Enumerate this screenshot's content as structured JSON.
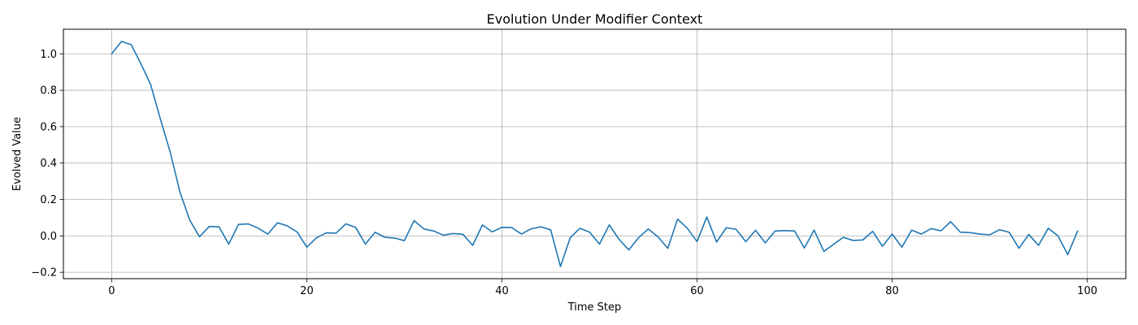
{
  "chart_data": {
    "type": "line",
    "title": "Evolution Under Modifier Context",
    "xlabel": "Time Step",
    "ylabel": "Evolved Value",
    "xlim": [
      -4.95,
      103.95
    ],
    "ylim": [
      -0.235,
      1.135
    ],
    "xticks": [
      0,
      20,
      40,
      60,
      80,
      100
    ],
    "yticks": [
      -0.2,
      0.0,
      0.2,
      0.4,
      0.6,
      0.8,
      1.0
    ],
    "xtick_labels": [
      "0",
      "20",
      "40",
      "60",
      "80",
      "100"
    ],
    "ytick_labels": [
      "−0.2",
      "0.0",
      "0.2",
      "0.4",
      "0.6",
      "0.8",
      "1.0"
    ],
    "grid": true,
    "line_color": "#1f77b4",
    "series": [
      {
        "x": [
          0,
          1,
          2,
          3,
          4,
          5,
          6,
          7,
          8,
          9,
          10,
          11,
          12,
          13,
          14,
          15,
          16,
          17,
          18,
          19,
          20,
          21,
          22,
          23,
          24,
          25,
          26,
          27,
          28,
          29,
          30,
          31,
          32,
          33,
          34,
          35,
          36,
          37,
          38,
          39,
          40,
          41,
          42,
          43,
          44,
          45,
          46,
          47,
          48,
          49,
          50,
          51,
          52,
          53,
          54,
          55,
          56,
          57,
          58,
          59,
          60,
          61,
          62,
          63,
          64,
          65,
          66,
          67,
          68,
          69,
          70,
          71,
          72,
          73,
          74,
          75,
          76,
          77,
          78,
          79,
          80,
          81,
          82,
          83,
          84,
          85,
          86,
          87,
          88,
          89,
          90,
          91,
          92,
          93,
          94,
          95,
          96,
          97,
          98,
          99
        ],
        "values": [
          1.0,
          1.068,
          1.05,
          0.945,
          0.83,
          0.64,
          0.46,
          0.24,
          0.087,
          -0.005,
          0.052,
          0.05,
          -0.045,
          0.063,
          0.066,
          0.043,
          0.01,
          0.072,
          0.055,
          0.022,
          -0.062,
          -0.01,
          0.017,
          0.015,
          0.066,
          0.047,
          -0.045,
          0.02,
          -0.008,
          -0.012,
          -0.026,
          0.084,
          0.038,
          0.027,
          0.004,
          0.013,
          0.009,
          -0.052,
          0.06,
          0.022,
          0.047,
          0.046,
          0.01,
          0.039,
          0.05,
          0.033,
          -0.168,
          -0.01,
          0.042,
          0.02,
          -0.045,
          0.06,
          -0.018,
          -0.077,
          -0.01,
          0.038,
          -0.005,
          -0.068,
          0.092,
          0.042,
          -0.031,
          0.104,
          -0.034,
          0.045,
          0.036,
          -0.032,
          0.031,
          -0.038,
          0.027,
          0.029,
          0.027,
          -0.067,
          0.032,
          -0.085,
          -0.046,
          -0.008,
          -0.025,
          -0.022,
          0.025,
          -0.057,
          0.01,
          -0.062,
          0.032,
          0.01,
          0.04,
          0.028,
          0.078,
          0.02,
          0.018,
          0.01,
          0.006,
          0.034,
          0.02,
          -0.068,
          0.008,
          -0.052,
          0.042,
          0.0,
          -0.103,
          0.026
        ]
      }
    ]
  }
}
